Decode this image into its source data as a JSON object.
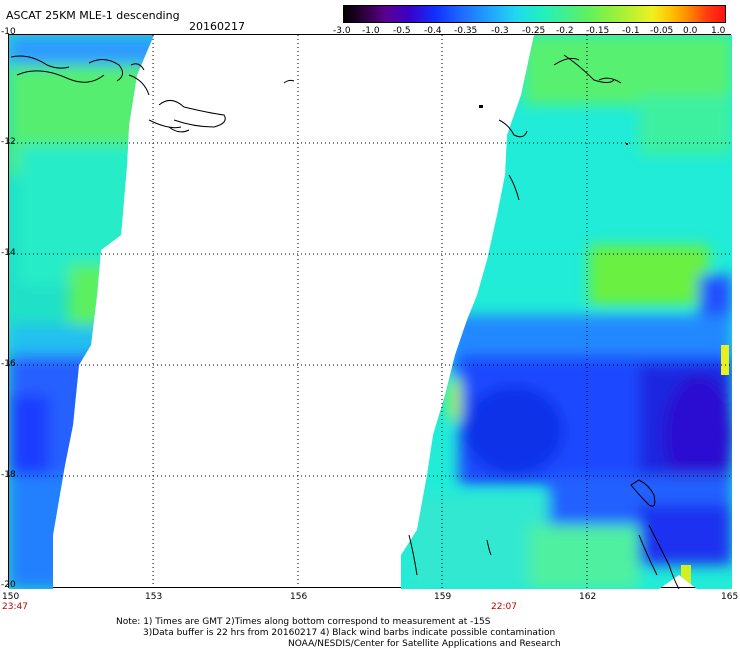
{
  "header": {
    "title": "ASCAT 25KM MLE-1 descending",
    "date": "20160217"
  },
  "colorbar": {
    "ticks": [
      "-3.0",
      "-1.0",
      "-0.5",
      "-0.4",
      "-0.35",
      "-0.3",
      "-0.25",
      "-0.2",
      "-0.15",
      "-0.1",
      "-0.05",
      "0.0",
      "1.0"
    ]
  },
  "map": {
    "lat_labels": [
      "-10",
      "-12",
      "-14",
      "-16",
      "-18",
      "-20"
    ],
    "lon_labels": [
      "150",
      "153",
      "156",
      "159",
      "162",
      "165"
    ],
    "time_labels": [
      "23:47",
      "22:07"
    ]
  },
  "notes": {
    "line1": "Note: 1) Times are GMT 2)Times along bottom correspond to measurement at -15S",
    "line2": "3)Data buffer is 22 hrs from 20160217 4) Black wind barbs indicate possible contamination",
    "line3": "NOAA/NESDIS/Center for Satellite Applications and Research"
  },
  "colors": {
    "data_low": "#1a3cff",
    "data_mid": "#20e0e8",
    "data_high": "#7cf040",
    "annotation_red": "#c00000"
  }
}
